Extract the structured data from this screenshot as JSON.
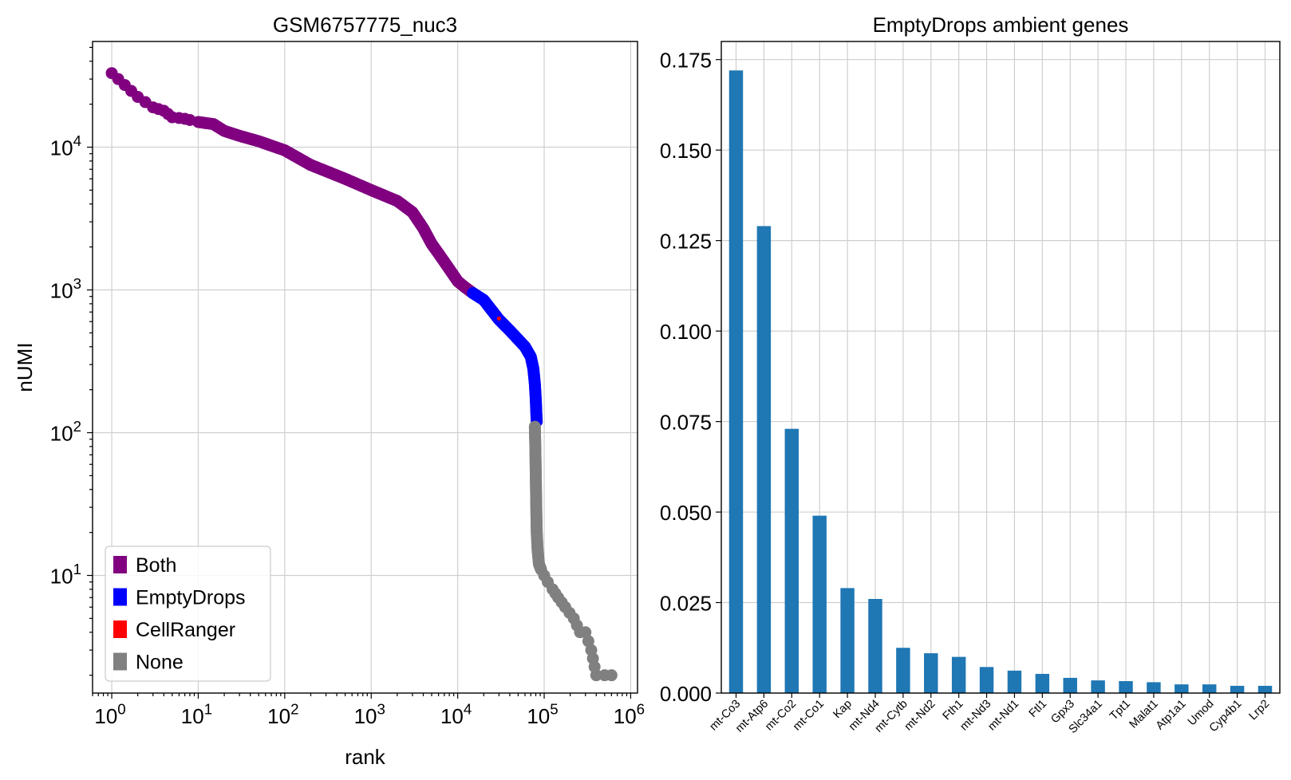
{
  "chart_data": [
    {
      "type": "scatter",
      "title": "GSM6757775_nuc3",
      "xlabel": "rank",
      "ylabel": "nUMI",
      "xscale": "log",
      "yscale": "log",
      "xlim": [
        0.6,
        1200000
      ],
      "ylim": [
        1.5,
        55000
      ],
      "xticks": [
        1,
        10,
        100,
        1000,
        10000,
        100000,
        1000000
      ],
      "xtick_labels": [
        "10^0",
        "10^1",
        "10^2",
        "10^3",
        "10^4",
        "10^5",
        "10^6"
      ],
      "yticks": [
        10,
        100,
        1000,
        10000
      ],
      "ytick_labels": [
        "10^1",
        "10^2",
        "10^3",
        "10^4"
      ],
      "grid": true,
      "legend_position": "lower-left",
      "colors": {
        "Both": "#800080",
        "EmptyDrops": "#0000ff",
        "CellRanger": "#ff0000",
        "None": "#808080"
      },
      "legend": [
        "Both",
        "EmptyDrops",
        "CellRanger",
        "None"
      ],
      "series": [
        {
          "name": "Both",
          "x": [
            1,
            2,
            3,
            4,
            5,
            6,
            7,
            8,
            10,
            15,
            20,
            30,
            50,
            100,
            200,
            500,
            1000,
            2000,
            3000,
            4000,
            5000,
            6000,
            8000,
            10000,
            12000,
            15000
          ],
          "y": [
            33000,
            22500,
            19000,
            18000,
            16200,
            16000,
            15800,
            15500,
            15000,
            14500,
            13000,
            12000,
            11000,
            9500,
            7500,
            6000,
            5000,
            4200,
            3500,
            2700,
            2100,
            1800,
            1400,
            1150,
            1050,
            950
          ]
        },
        {
          "name": "EmptyDrops",
          "x": [
            15000,
            20000,
            30000,
            40000,
            50000,
            60000,
            70000,
            75000,
            78000,
            80000,
            81000,
            82000
          ],
          "y": [
            950,
            850,
            620,
            520,
            450,
            400,
            340,
            280,
            220,
            170,
            140,
            120
          ]
        },
        {
          "name": "CellRanger",
          "x": [
            30000
          ],
          "y": [
            630
          ]
        },
        {
          "name": "None",
          "x": [
            78000,
            79000,
            80000,
            81000,
            82000,
            84000,
            87000,
            92000,
            100000,
            110000,
            125000,
            145000,
            175000,
            220000,
            260000,
            300000,
            350000,
            400000,
            500000,
            600000
          ],
          "y": [
            110,
            80,
            50,
            30,
            20,
            15,
            12,
            11,
            10,
            9,
            8,
            7,
            6,
            5,
            4,
            4,
            3,
            2,
            2,
            2
          ]
        }
      ]
    },
    {
      "type": "bar",
      "title": "EmptyDrops ambient genes",
      "xlabel": "",
      "ylabel": "",
      "ylim": [
        0,
        0.18
      ],
      "yticks": [
        0.0,
        0.025,
        0.05,
        0.075,
        0.1,
        0.125,
        0.15,
        0.175
      ],
      "ytick_labels": [
        "0.000",
        "0.025",
        "0.050",
        "0.075",
        "0.100",
        "0.125",
        "0.150",
        "0.175"
      ],
      "grid": true,
      "bar_color": "#1f77b4",
      "categories": [
        "mt-Co3",
        "mt-Atp6",
        "mt-Co2",
        "mt-Co1",
        "Kap",
        "mt-Nd4",
        "mt-Cytb",
        "mt-Nd2",
        "Fth1",
        "mt-Nd3",
        "mt-Nd1",
        "Ftl1",
        "Gpx3",
        "Slc34a1",
        "Tpt1",
        "Malat1",
        "Atp1a1",
        "Umod",
        "Cyp4b1",
        "Lrp2"
      ],
      "values": [
        0.172,
        0.129,
        0.073,
        0.049,
        0.029,
        0.026,
        0.0125,
        0.011,
        0.01,
        0.0072,
        0.0062,
        0.0053,
        0.0042,
        0.0035,
        0.0033,
        0.003,
        0.0024,
        0.0024,
        0.002,
        0.002
      ]
    }
  ]
}
